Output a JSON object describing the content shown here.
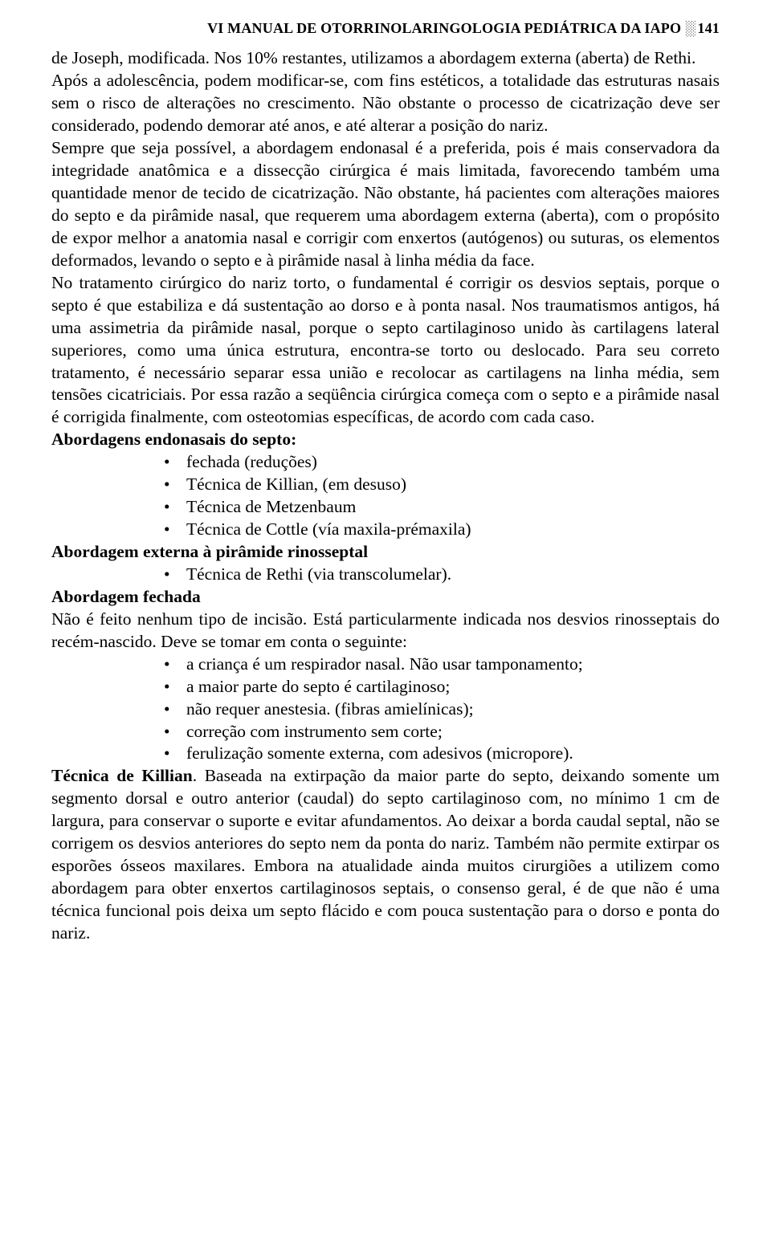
{
  "header": {
    "title": "VI MANUAL DE OTORRINOLARINGOLOGIA PEDIÁTRICA DA IAPO",
    "ornament": "░",
    "page": "141"
  },
  "paragraphs": {
    "p1": "de Joseph, modificada. Nos 10% restantes, utilizamos a abordagem externa (aberta) de Rethi.",
    "p2": "Após a adolescência, podem modificar-se, com fins estéticos, a totalidade das estruturas nasais sem o risco de alterações no crescimento. Não obstante o processo de cicatrização deve ser considerado, podendo demorar até anos, e até alterar a posição do nariz.",
    "p3": "Sempre que seja possível, a abordagem endonasal é a preferida, pois é mais conservadora da integridade anatômica e a dissecção cirúrgica é mais limitada, favorecendo também uma quantidade menor de tecido de cicatrização. Não obstante, há pacientes com alterações maiores do septo e da pirâmide nasal, que requerem uma abordagem externa (aberta), com o propósito de expor melhor a anatomia nasal e corrigir com enxertos (autógenos) ou suturas, os elementos deformados, levando o septo e à pirâmide nasal à linha média da face.",
    "p4": "No tratamento cirúrgico do nariz torto, o fundamental é corrigir os desvios septais, porque o septo é que estabiliza e dá sustentação ao dorso e à ponta nasal. Nos traumatismos antigos, há uma assimetria da pirâmide nasal, porque o septo cartilaginoso unido às cartilagens lateral superiores, como uma única estrutura, encontra-se torto ou deslocado. Para seu correto tratamento, é necessário separar essa união e recolocar as cartilagens na linha média, sem tensões cicatriciais. Por essa razão a seqüência cirúrgica começa com o septo e a pirâmide nasal é corrigida finalmente, com osteotomias específicas, de acordo com cada caso."
  },
  "section1": {
    "heading": "Abordagens endonasais do septo:",
    "items": [
      "fechada (reduções)",
      "Técnica de Killian, (em desuso)",
      "Técnica de Metzenbaum",
      "Técnica de Cottle (vía maxila-prémaxila)"
    ]
  },
  "section2": {
    "heading": "Abordagem externa à pirâmide rinosseptal",
    "items": [
      "Técnica de Rethi (via transcolumelar)."
    ]
  },
  "section3": {
    "heading": "Abordagem fechada",
    "intro": "Não é feito nenhum tipo de incisão. Está particularmente indicada nos desvios rinosseptais do recém-nascido. Deve se tomar em conta o seguinte:",
    "items": [
      "a criança é um respirador nasal. Não usar tamponamento;",
      "a maior parte do septo é cartilaginoso;",
      "não requer anestesia. (fibras amielínicas);",
      "correção com instrumento sem corte;",
      "ferulização somente externa, com adesivos (micropore)."
    ]
  },
  "section4": {
    "lead": "Técnica de Killian",
    "body": ". Baseada na extirpação da maior parte do septo, deixando somente um segmento dorsal e outro anterior (caudal) do septo cartilaginoso com, no mínimo 1 cm de largura, para conservar o suporte e evitar afundamentos. Ao deixar a borda caudal septal, não se corrigem os desvios anteriores do septo nem da ponta do nariz. Também não permite extirpar os esporões ósseos maxilares. Embora na atualidade ainda muitos cirurgiões a utilizem como abordagem para obter enxertos cartilaginosos septais, o consenso geral, é de que não é uma técnica funcional pois deixa um septo flácido e com pouca sustentação para o dorso e ponta do nariz."
  }
}
